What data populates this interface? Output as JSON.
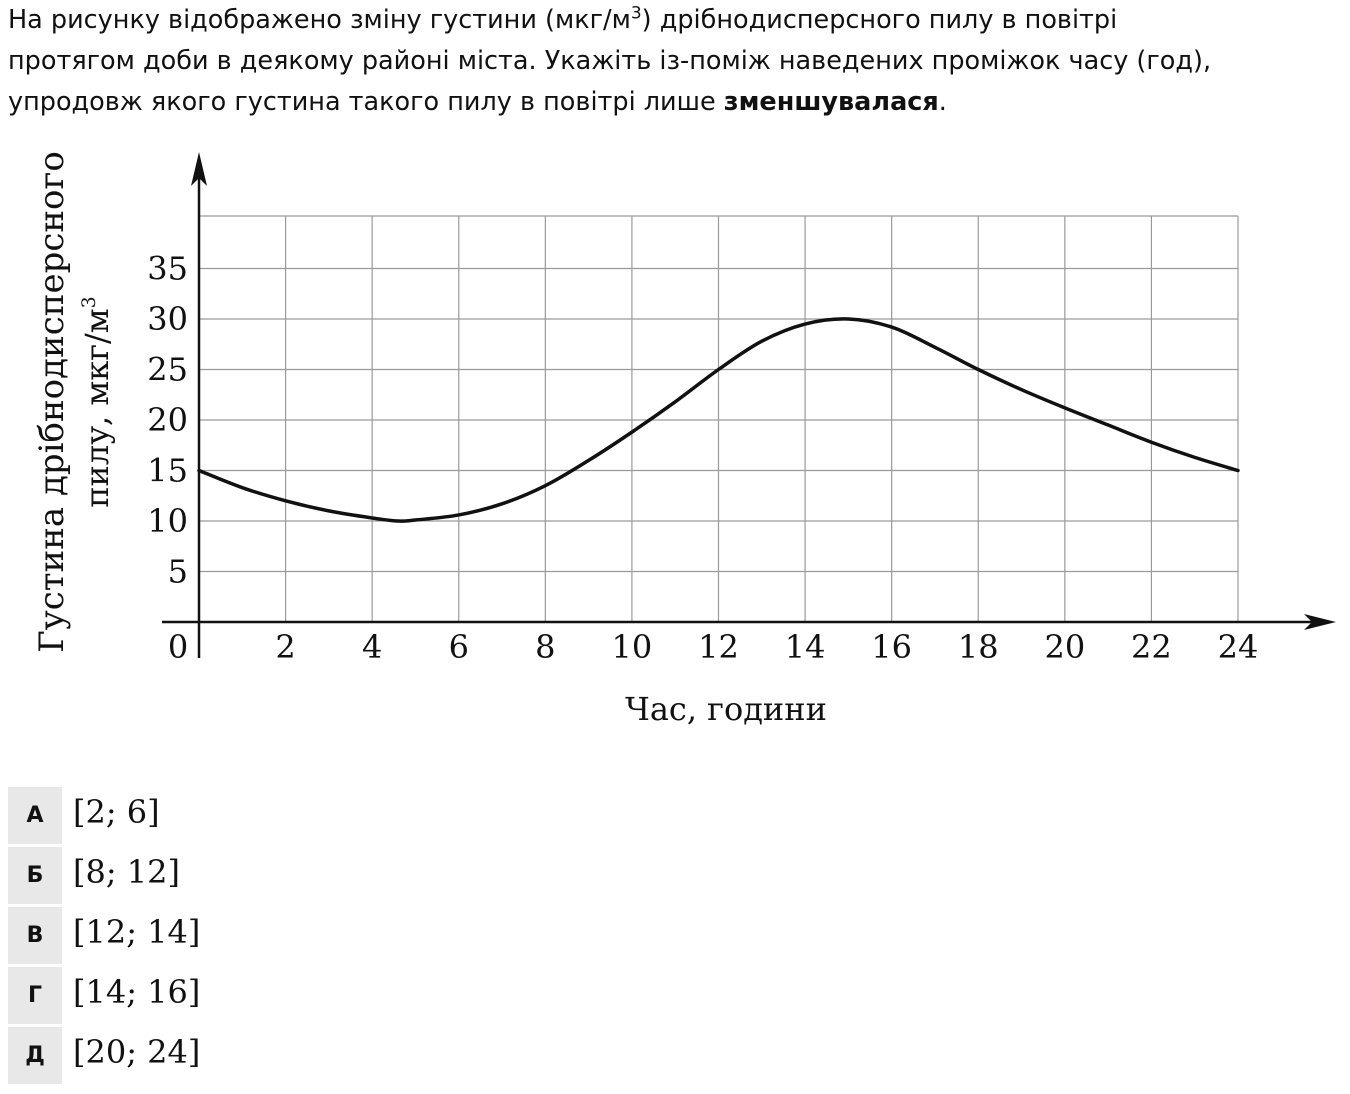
{
  "question": {
    "line1_before": "На рисунку відображено зміну густини (мкг/м",
    "line1_sup": "3",
    "line1_after": ") дрібнодисперсного пилу в повітрі",
    "line2": "протягом доби в деякому районі міста. Укажіть із-поміж наведених проміжок часу (год),",
    "line3_before": "упродовж якого густина такого пилу в повітрі лише ",
    "line3_bold": "зменшувалася",
    "line3_after": "."
  },
  "chart_data": {
    "type": "line",
    "xlabel": "Час, години",
    "ylabel_line1": "Густина дрібнодисперсного",
    "ylabel_line2": "пилу, мкг/м",
    "ylabel_sup": "3",
    "xlim": [
      0,
      24
    ],
    "ylim": [
      0,
      40
    ],
    "grid": true,
    "x_ticks": [
      "2",
      "4",
      "6",
      "8",
      "10",
      "12",
      "14",
      "16",
      "18",
      "20",
      "22",
      "24"
    ],
    "y_ticks": [
      "5",
      "10",
      "15",
      "20",
      "25",
      "30",
      "35"
    ],
    "origin_label": "0",
    "series": [
      {
        "x": [
          0,
          1,
          2,
          3,
          4,
          4.6,
          5,
          6,
          7,
          8,
          9,
          10,
          11,
          12,
          13,
          14,
          15,
          16,
          17,
          18,
          19,
          20,
          21,
          22,
          23,
          24
        ],
        "y": [
          15,
          13.3,
          12,
          11,
          10.3,
          10,
          10.1,
          10.6,
          11.7,
          13.5,
          16,
          18.8,
          21.8,
          25,
          27.8,
          29.5,
          30,
          29.2,
          27.2,
          25,
          23,
          21.2,
          19.5,
          17.8,
          16.3,
          15
        ]
      }
    ]
  },
  "options": [
    {
      "letter": "А",
      "text": "[2;  6]"
    },
    {
      "letter": "Б",
      "text": "[8;  12]"
    },
    {
      "letter": "В",
      "text": "[12;  14]"
    },
    {
      "letter": "Г",
      "text": "[14;  16]"
    },
    {
      "letter": "Д",
      "text": "[20;  24]"
    }
  ]
}
